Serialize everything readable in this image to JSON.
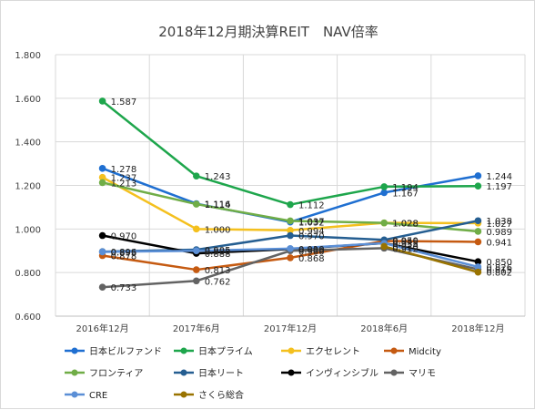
{
  "chart_data": {
    "type": "line",
    "title": "2018年12月期決算REIT　NAV倍率",
    "xlabel": "",
    "ylabel": "",
    "ylim": [
      0.6,
      1.8
    ],
    "yticks": [
      "0.600",
      "0.800",
      "1.000",
      "1.200",
      "1.400",
      "1.600",
      "1.800"
    ],
    "categories": [
      "2016年12月",
      "2017年6月",
      "2017年12月",
      "2018年6月",
      "2018年12月"
    ],
    "grid": true,
    "legend_position": "bottom",
    "series": [
      {
        "name": "日本ビルファンド",
        "color": "#1f6fd1",
        "values": [
          1.278,
          1.116,
          1.032,
          1.167,
          1.244
        ]
      },
      {
        "name": "日本プライム",
        "color": "#1ea64c",
        "values": [
          1.587,
          1.243,
          1.112,
          1.194,
          1.197
        ]
      },
      {
        "name": "エクセレント",
        "color": "#f4c01e",
        "values": [
          1.237,
          1.0,
          0.994,
          1.028,
          1.027
        ]
      },
      {
        "name": "Midcity",
        "color": "#c55a11",
        "values": [
          0.878,
          0.813,
          0.868,
          0.945,
          0.941
        ]
      },
      {
        "name": "フロンティア",
        "color": "#70ad47",
        "values": [
          1.213,
          1.114,
          1.037,
          1.028,
          0.989
        ]
      },
      {
        "name": "日本リート",
        "color": "#255e91",
        "values": [
          0.896,
          0.905,
          0.97,
          0.95,
          1.038
        ]
      },
      {
        "name": "インヴィンシブル",
        "color": "#000000",
        "values": [
          0.97,
          0.888,
          0.908,
          0.935,
          0.85
        ]
      },
      {
        "name": "マリモ",
        "color": "#636363",
        "values": [
          0.733,
          0.762,
          0.9,
          0.912,
          0.815
        ]
      },
      {
        "name": "CRE",
        "color": "#5b8fd6",
        "values": [
          0.895,
          0.9,
          0.91,
          0.935,
          0.826
        ]
      },
      {
        "name": "さくら総合",
        "color": "#997300",
        "values": [
          null,
          null,
          null,
          0.92,
          0.802
        ]
      }
    ]
  }
}
